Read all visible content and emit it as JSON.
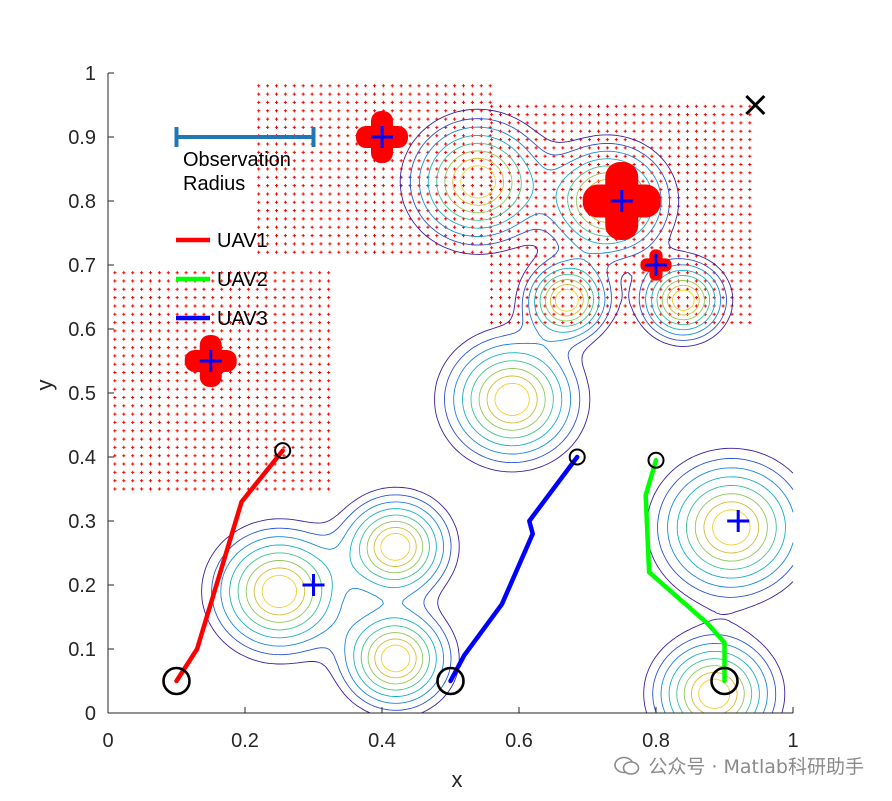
{
  "chart_data": {
    "type": "contour",
    "title": "",
    "xlabel": "x",
    "ylabel": "y",
    "xlim": [
      0,
      1
    ],
    "ylim": [
      0,
      1
    ],
    "xticks": [
      0,
      0.2,
      0.4,
      0.6,
      0.8,
      1
    ],
    "yticks": [
      0,
      0.1,
      0.2,
      0.3,
      0.4,
      0.5,
      0.6,
      0.7,
      0.8,
      0.9,
      1
    ],
    "xtick_labels": [
      "0",
      "0.2",
      "0.4",
      "0.6",
      "0.8",
      "1"
    ],
    "ytick_labels": [
      "0",
      "0.1",
      "0.2",
      "0.3",
      "0.4",
      "0.5",
      "0.6",
      "0.7",
      "0.8",
      "0.9",
      "1"
    ],
    "contour_peaks": [
      {
        "x": 0.25,
        "y": 0.19,
        "s": 0.055
      },
      {
        "x": 0.42,
        "y": 0.26,
        "s": 0.045
      },
      {
        "x": 0.42,
        "y": 0.085,
        "s": 0.045
      },
      {
        "x": 0.59,
        "y": 0.49,
        "s": 0.055
      },
      {
        "x": 0.67,
        "y": 0.645,
        "s": 0.035
      },
      {
        "x": 0.84,
        "y": 0.645,
        "s": 0.035
      },
      {
        "x": 0.54,
        "y": 0.83,
        "s": 0.055
      },
      {
        "x": 0.73,
        "y": 0.8,
        "s": 0.05
      },
      {
        "x": 0.91,
        "y": 0.29,
        "s": 0.06
      },
      {
        "x": 0.885,
        "y": 0.03,
        "s": 0.05
      }
    ],
    "contour_levels": [
      0.12,
      0.2,
      0.3,
      0.42,
      0.55,
      0.68,
      0.8,
      0.9
    ],
    "targets": [
      {
        "x": 0.15,
        "y": 0.55
      },
      {
        "x": 0.4,
        "y": 0.9
      },
      {
        "x": 0.75,
        "y": 0.8
      },
      {
        "x": 0.8,
        "y": 0.7
      },
      {
        "x": 0.3,
        "y": 0.2
      },
      {
        "x": 0.92,
        "y": 0.3
      }
    ],
    "target_blobs": [
      {
        "x": 0.15,
        "y": 0.55,
        "size": 1.0
      },
      {
        "x": 0.4,
        "y": 0.9,
        "size": 1.0
      },
      {
        "x": 0.75,
        "y": 0.8,
        "size": 1.5
      },
      {
        "x": 0.8,
        "y": 0.7,
        "size": 0.6
      }
    ],
    "observed_regions": [
      {
        "x0": 0.01,
        "x1": 0.33,
        "y0": 0.35,
        "y1": 0.7
      },
      {
        "x0": 0.22,
        "x1": 0.56,
        "y0": 0.72,
        "y1": 0.99
      },
      {
        "x0": 0.56,
        "x1": 0.94,
        "y0": 0.61,
        "y1": 0.95
      }
    ],
    "series": [
      {
        "name": "UAV1",
        "color": "#ff0000",
        "x": [
          0.1,
          0.13,
          0.195,
          0.255
        ],
        "y": [
          0.05,
          0.1,
          0.33,
          0.41
        ]
      },
      {
        "name": "UAV2",
        "color": "#00ff00",
        "x": [
          0.9,
          0.9,
          0.875,
          0.79,
          0.785,
          0.8
        ],
        "y": [
          0.05,
          0.11,
          0.14,
          0.22,
          0.34,
          0.395
        ]
      },
      {
        "name": "UAV3",
        "color": "#0000ff",
        "x": [
          0.5,
          0.52,
          0.575,
          0.62,
          0.615,
          0.685
        ],
        "y": [
          0.05,
          0.09,
          0.17,
          0.28,
          0.3,
          0.4
        ]
      }
    ],
    "start_markers": [
      {
        "x": 0.1,
        "y": 0.05
      },
      {
        "x": 0.5,
        "y": 0.05
      },
      {
        "x": 0.9,
        "y": 0.05
      }
    ],
    "end_markers": [
      {
        "x": 0.255,
        "y": 0.41
      },
      {
        "x": 0.685,
        "y": 0.4
      },
      {
        "x": 0.8,
        "y": 0.395
      }
    ],
    "cross_marker": {
      "x": 0.945,
      "y": 0.95
    },
    "scale_bar": {
      "x0": 0.1,
      "x1": 0.3,
      "y": 0.9,
      "color": "#1f77b4"
    },
    "annotation": {
      "line1": "Observation",
      "line2": "Radius"
    },
    "legend": {
      "position": "upper-left",
      "entries": [
        "UAV1",
        "UAV2",
        "UAV3"
      ]
    }
  },
  "watermark": {
    "text": "公众号 · Matlab科研助手"
  }
}
